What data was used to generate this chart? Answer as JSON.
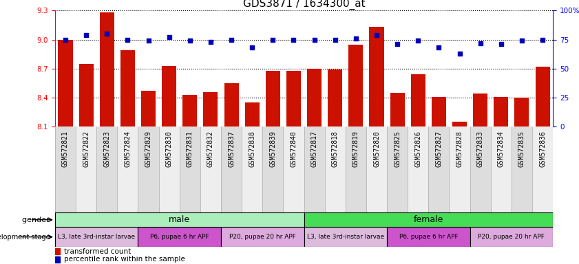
{
  "title": "GDS3871 / 1634300_at",
  "samples": [
    "GSM572821",
    "GSM572822",
    "GSM572823",
    "GSM572824",
    "GSM572829",
    "GSM572830",
    "GSM572831",
    "GSM572832",
    "GSM572837",
    "GSM572838",
    "GSM572839",
    "GSM572840",
    "GSM572817",
    "GSM572818",
    "GSM572819",
    "GSM572820",
    "GSM572825",
    "GSM572826",
    "GSM572827",
    "GSM572828",
    "GSM572833",
    "GSM572834",
    "GSM572835",
    "GSM572836"
  ],
  "transformed_count": [
    9.0,
    8.75,
    9.28,
    8.89,
    8.47,
    8.73,
    8.43,
    8.46,
    8.55,
    8.35,
    8.68,
    8.68,
    8.7,
    8.69,
    8.95,
    9.13,
    8.45,
    8.64,
    8.41,
    8.15,
    8.44,
    8.41,
    8.4,
    8.72
  ],
  "percentile_rank": [
    75,
    79,
    80,
    75,
    74,
    77,
    74,
    73,
    75,
    68,
    75,
    75,
    75,
    75,
    76,
    79,
    71,
    74,
    68,
    63,
    72,
    71,
    74,
    75
  ],
  "ylim_left": [
    8.1,
    9.3
  ],
  "ylim_right": [
    0,
    100
  ],
  "yticks_left": [
    8.1,
    8.4,
    8.7,
    9.0,
    9.3
  ],
  "yticks_right": [
    0,
    25,
    50,
    75,
    100
  ],
  "bar_color": "#CC1100",
  "dot_color": "#0000BB",
  "gender_groups": [
    {
      "label": "male",
      "start": 0,
      "end": 12,
      "color": "#AAEEBB"
    },
    {
      "label": "female",
      "start": 12,
      "end": 24,
      "color": "#44DD55"
    }
  ],
  "dev_stage_groups": [
    {
      "label": "L3, late 3rd-instar larvae",
      "start": 0,
      "end": 4,
      "color": "#DDBBDD"
    },
    {
      "label": "P6, pupae 6 hr APF",
      "start": 4,
      "end": 8,
      "color": "#CC55CC"
    },
    {
      "label": "P20, pupae 20 hr APF",
      "start": 8,
      "end": 12,
      "color": "#DDAADD"
    },
    {
      "label": "L3, late 3rd-instar larvae",
      "start": 12,
      "end": 16,
      "color": "#DDBBDD"
    },
    {
      "label": "P6, pupae 6 hr APF",
      "start": 16,
      "end": 20,
      "color": "#CC55CC"
    },
    {
      "label": "P20, pupae 20 hr APF",
      "start": 20,
      "end": 24,
      "color": "#DDAADD"
    }
  ],
  "background_color": "#FFFFFF",
  "title_fontsize": 11,
  "tick_fontsize": 7,
  "xtick_bg_even": "#DDDDDD",
  "xtick_bg_odd": "#EEEEEE"
}
